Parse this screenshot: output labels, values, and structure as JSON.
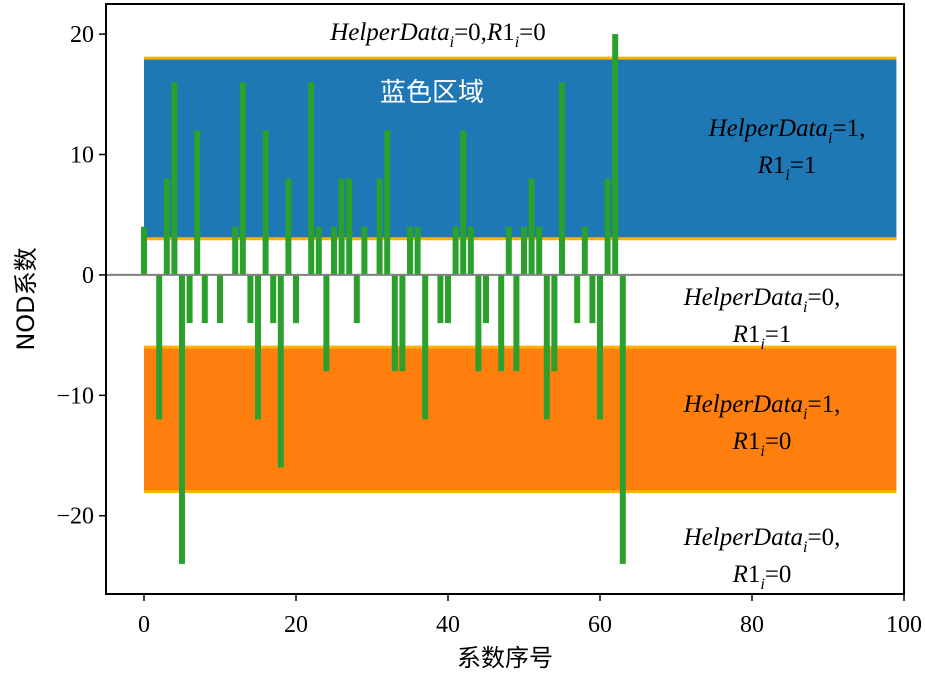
{
  "chart_data": {
    "type": "bar",
    "title": "",
    "xlabel": "系数序号",
    "ylabel": "NOD系数",
    "xlim": [
      -5,
      100
    ],
    "ylim": [
      -26.5,
      22.5
    ],
    "xticks": [
      "0",
      "20",
      "40",
      "60",
      "80",
      "100"
    ],
    "yticks": [
      "20",
      "10",
      "0",
      "−10",
      "−20"
    ],
    "xtick_values": [
      0,
      20,
      40,
      60,
      80,
      100
    ],
    "ytick_values": [
      20,
      10,
      0,
      -10,
      -20
    ],
    "grid": false,
    "bar_color": "#2ca02c",
    "zero_line_color": "#808080",
    "regions": [
      {
        "name": "blue",
        "y_from": 3,
        "y_to": 18,
        "x_from": 0,
        "x_to": 99,
        "color": "#1f77b4",
        "edge_color": "#ffb000",
        "label": "蓝色区域"
      },
      {
        "name": "orange",
        "y_from": -18,
        "y_to": -6,
        "x_from": 0,
        "x_to": 99,
        "color": "#ff7f0e",
        "edge_color": "#ffb000"
      }
    ],
    "annotations": [
      {
        "parts": [
          {
            "t": "HelperData",
            "i": true
          },
          {
            "t": "i",
            "i": true,
            "sub": true
          },
          {
            "t": "=0,",
            "i": false
          },
          {
            "t": "R",
            "i": true
          },
          {
            "t": "1",
            "i": false
          },
          {
            "t": "i",
            "i": true,
            "sub": true
          },
          {
            "t": "=0",
            "i": false
          }
        ]
      },
      {
        "parts": [
          {
            "t": "HelperData",
            "i": true
          },
          {
            "t": "i",
            "i": true,
            "sub": true
          },
          {
            "t": "=1,",
            "i": false
          }
        ]
      },
      {
        "parts": [
          {
            "t": "R",
            "i": true
          },
          {
            "t": "1",
            "i": false
          },
          {
            "t": "i",
            "i": true,
            "sub": true
          },
          {
            "t": "=1",
            "i": false
          }
        ]
      },
      {
        "parts": [
          {
            "t": "HelperData",
            "i": true
          },
          {
            "t": "i",
            "i": true,
            "sub": true
          },
          {
            "t": "=0,",
            "i": false
          }
        ]
      },
      {
        "parts": [
          {
            "t": "R",
            "i": true
          },
          {
            "t": "1",
            "i": false
          },
          {
            "t": "i",
            "i": true,
            "sub": true
          },
          {
            "t": "=1",
            "i": false
          }
        ]
      },
      {
        "parts": [
          {
            "t": "HelperData",
            "i": true
          },
          {
            "t": "i",
            "i": true,
            "sub": true
          },
          {
            "t": "=1,",
            "i": false
          }
        ]
      },
      {
        "parts": [
          {
            "t": "R",
            "i": true
          },
          {
            "t": "1",
            "i": false
          },
          {
            "t": "i",
            "i": true,
            "sub": true
          },
          {
            "t": "=0",
            "i": false
          }
        ]
      },
      {
        "parts": [
          {
            "t": "HelperData",
            "i": true
          },
          {
            "t": "i",
            "i": true,
            "sub": true
          },
          {
            "t": "=0,",
            "i": false
          }
        ]
      },
      {
        "parts": [
          {
            "t": "R",
            "i": true
          },
          {
            "t": "1",
            "i": false
          },
          {
            "t": "i",
            "i": true,
            "sub": true
          },
          {
            "t": "=0",
            "i": false
          }
        ]
      }
    ],
    "x": [
      0,
      1,
      2,
      3,
      4,
      5,
      6,
      7,
      8,
      9,
      10,
      11,
      12,
      13,
      14,
      15,
      16,
      17,
      18,
      19,
      20,
      21,
      22,
      23,
      24,
      25,
      26,
      27,
      28,
      29,
      30,
      31,
      32,
      33,
      34,
      35,
      36,
      37,
      38,
      39,
      40,
      41,
      42,
      43,
      44,
      45,
      46,
      47,
      48,
      49,
      50,
      51,
      52,
      53,
      54,
      55,
      56,
      57,
      58,
      59,
      60,
      61,
      62,
      63
    ],
    "values": [
      4,
      0,
      -12,
      8,
      16,
      -24,
      -4,
      12,
      -4,
      0,
      -4,
      0,
      4,
      16,
      -4,
      -12,
      12,
      -4,
      -16,
      8,
      -4,
      0,
      16,
      4,
      -8,
      4,
      8,
      8,
      -4,
      4,
      0,
      8,
      12,
      -8,
      -8,
      4,
      4,
      -12,
      0,
      -4,
      -4,
      4,
      12,
      4,
      -8,
      -4,
      0,
      -8,
      4,
      -8,
      4,
      8,
      4,
      -12,
      -8,
      16,
      0,
      -4,
      4,
      -4,
      -12,
      8,
      20,
      -24
    ]
  }
}
